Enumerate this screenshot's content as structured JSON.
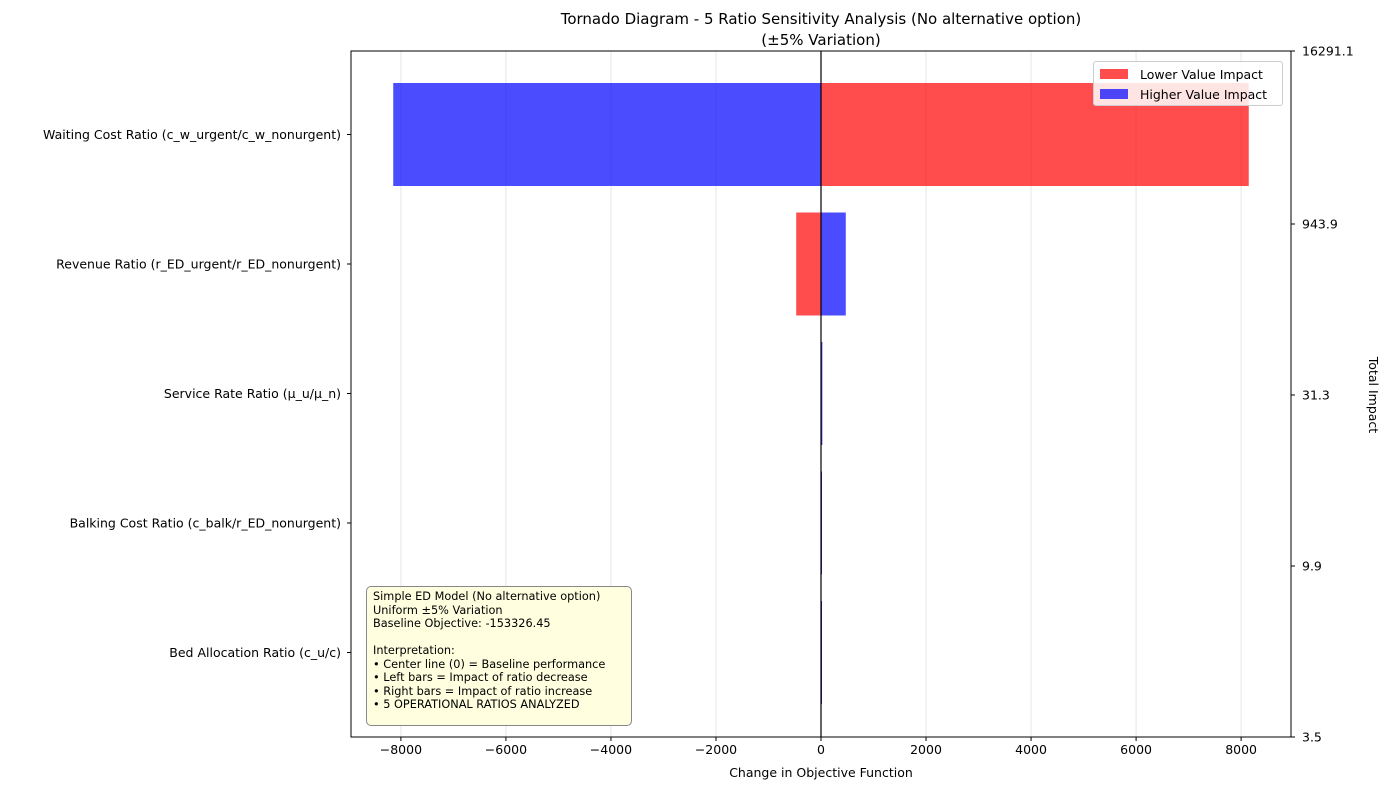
{
  "chart_data": {
    "type": "bar",
    "orientation": "horizontal",
    "title": "Tornado Diagram - 5 Ratio Sensitivity Analysis (No alternative option)",
    "subtitle": "(±5% Variation)",
    "xlabel": "Change in Objective Function",
    "ylabel_right": "Total Impact",
    "xlim": [
      -8950,
      8950
    ],
    "xticks": [
      -8000,
      -6000,
      -4000,
      -2000,
      0,
      2000,
      4000,
      6000,
      8000
    ],
    "xtick_labels": [
      "−8000",
      "−6000",
      "−4000",
      "−2000",
      "0",
      "2000",
      "4000",
      "6000",
      "8000"
    ],
    "grid": "vertical",
    "categories": [
      "Waiting Cost Ratio (c_w_urgent/c_w_nonurgent)",
      "Revenue Ratio (r_ED_urgent/r_ED_nonurgent)",
      "Service Rate Ratio (μ_u/μ_n)",
      "Balking Cost Ratio (c_balk/r_ED_nonurgent)",
      "Bed Allocation Ratio (c_u/c)"
    ],
    "series": [
      {
        "name": "Lower Value Impact",
        "color": "#ff0000",
        "values": [
          8145.5,
          -472,
          -5,
          -3,
          -1.8
        ]
      },
      {
        "name": "Higher Value Impact",
        "color": "#0000ff",
        "values": [
          -8145.6,
          471.9,
          26.3,
          6.9,
          1.7
        ]
      }
    ],
    "right_axis_labels": [
      "16291.1",
      "943.9",
      "31.3",
      "9.9",
      "3.5"
    ],
    "legend_position": "upper right"
  },
  "info_box": {
    "lines": [
      "Simple ED Model (No alternative option)",
      "Uniform ±5% Variation",
      "Baseline Objective: -153326.45",
      "",
      "Interpretation:",
      "• Center line (0) = Baseline performance",
      "• Left bars = Impact of ratio decrease",
      "• Right bars = Impact of ratio increase",
      "• 5 OPERATIONAL RATIOS ANALYZED"
    ]
  }
}
